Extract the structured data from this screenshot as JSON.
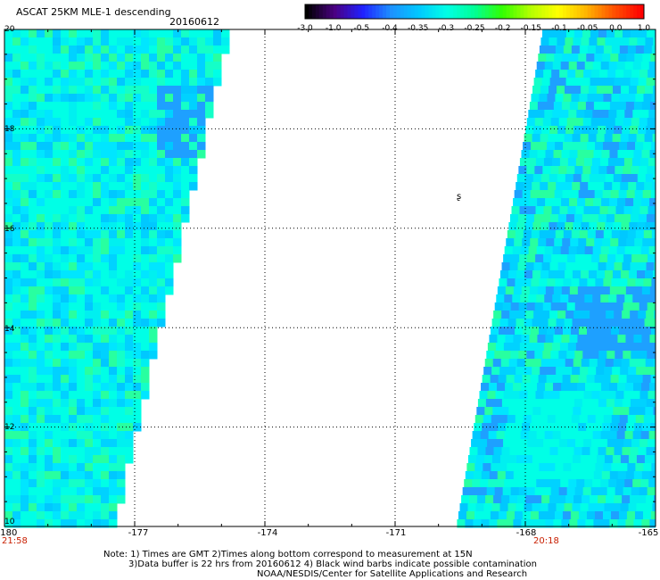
{
  "header": {
    "title": "ASCAT 25KM MLE-1 descending",
    "date": "20160612"
  },
  "colorbar": {
    "labels": [
      "-3.0",
      "-1.0",
      "-0.5",
      "-0.4",
      "-0.35",
      "-0.3",
      "-0.25",
      "-0.2",
      "-0.15",
      "-0.1",
      "-0.05",
      "0.0",
      "1.0"
    ],
    "colors": [
      "#000000",
      "#4b0082",
      "#2020ff",
      "#1e90ff",
      "#00c8ff",
      "#00ffe6",
      "#00ff96",
      "#32ff00",
      "#b4ff00",
      "#ffff00",
      "#ffb400",
      "#ff5000",
      "#ff0000"
    ]
  },
  "map": {
    "x_labels": [
      "-180",
      "-177",
      "-174",
      "-171",
      "-168",
      "-165"
    ],
    "y_labels": [
      "20",
      "18",
      "16",
      "14",
      "12",
      "10"
    ],
    "lon_range": [
      -180,
      -165
    ],
    "lat_range": [
      10,
      20
    ],
    "time_left": "21:58",
    "time_right": "20:18",
    "marker": "ʂ"
  },
  "notes": {
    "line1": "Note: 1) Times are GMT 2)Times along bottom correspond to measurement at 15N",
    "line2": "3)Data buffer is 22 hrs from 20160612 4) Black wind barbs indicate possible contamination",
    "line3": "NOAA/NESDIS/Center for Satellite Applications and Research"
  }
}
